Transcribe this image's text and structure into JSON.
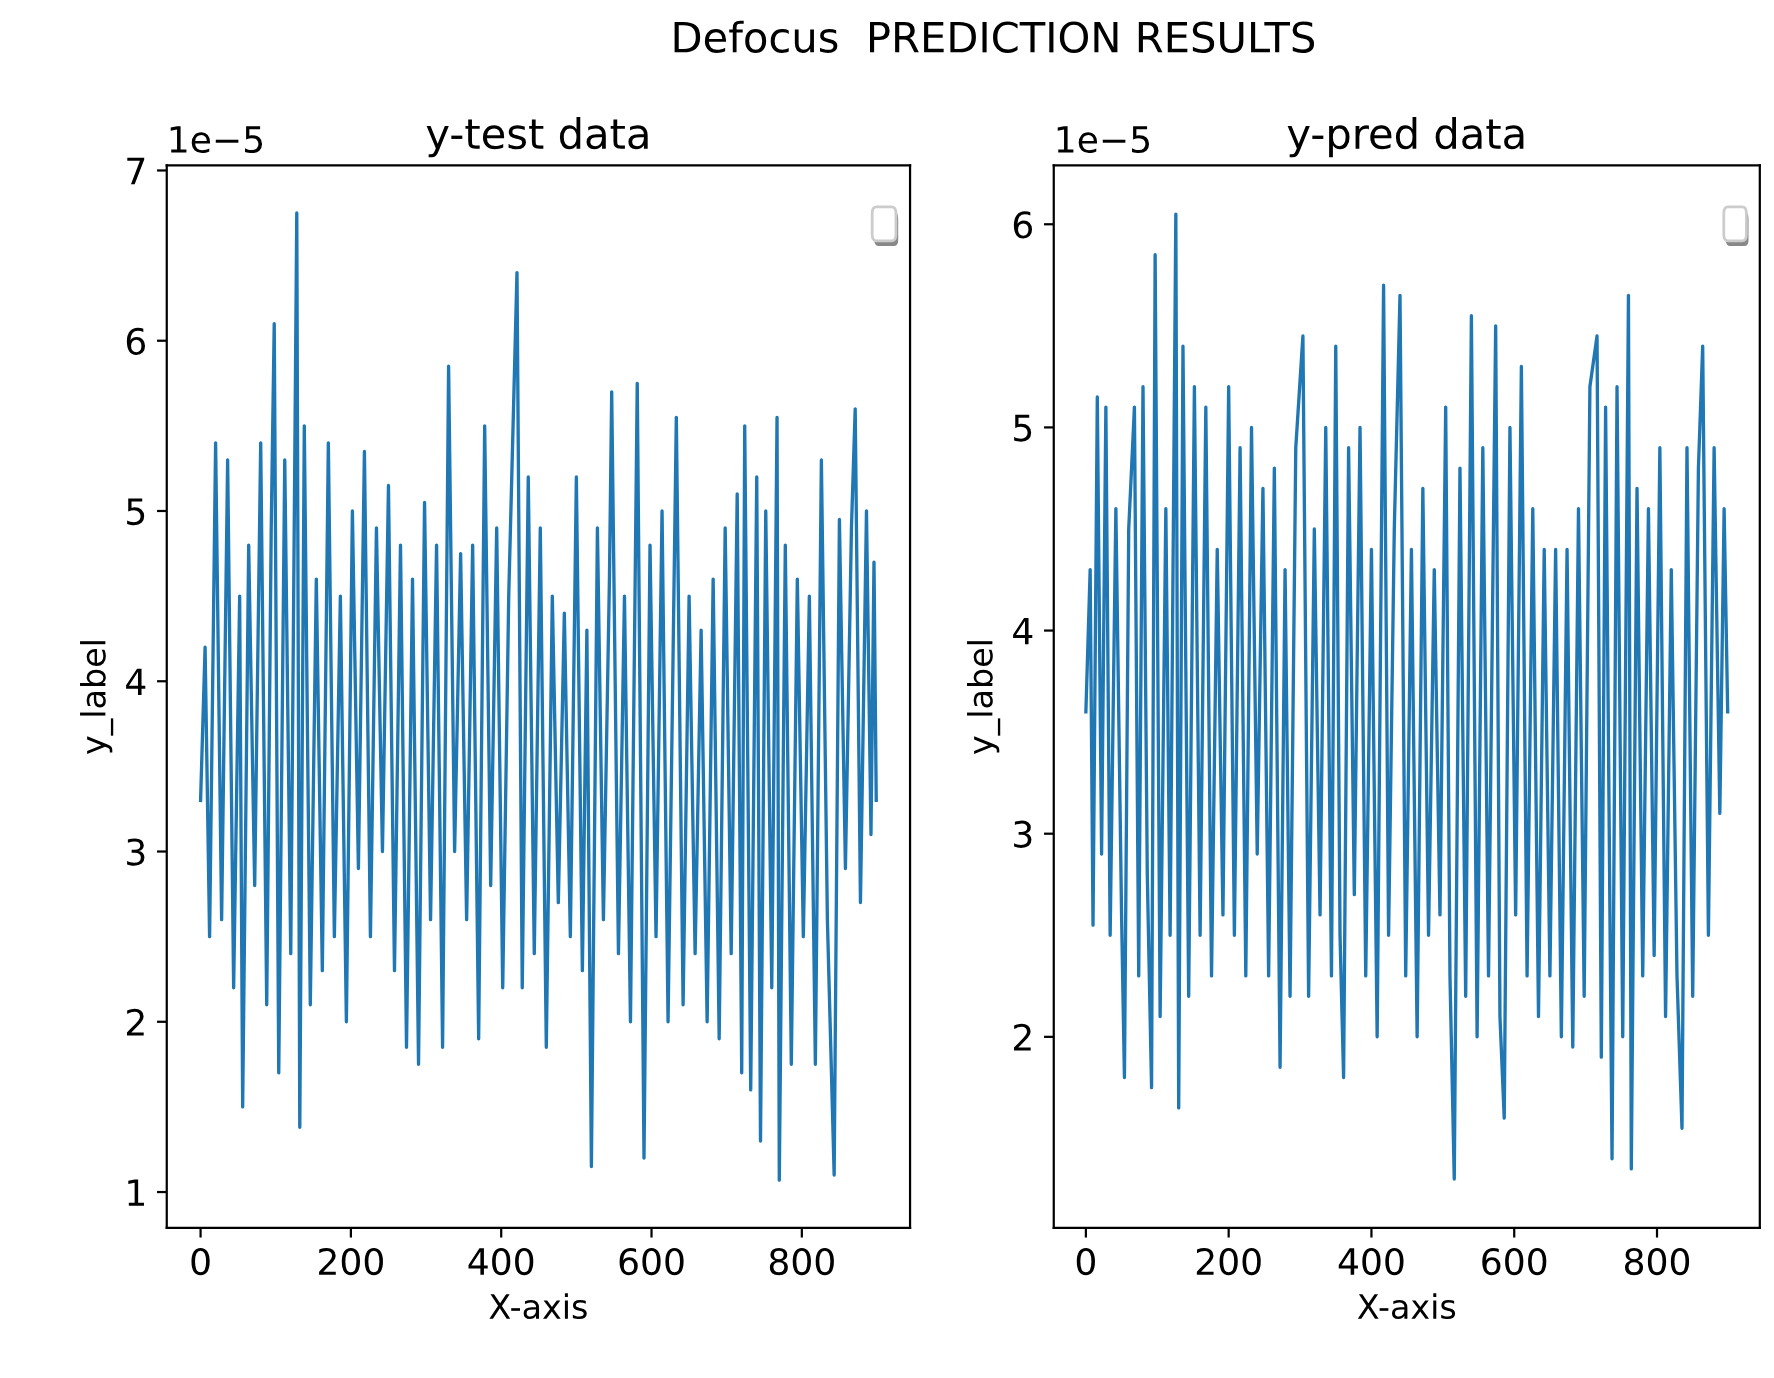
{
  "chart_data": [
    {
      "type": "line",
      "title": "y-test data",
      "xlabel": "X-axis",
      "ylabel": "y_label",
      "annotations": [
        "Defocus  PREDICTION RESULTS",
        "1e−5"
      ],
      "xlim": [
        -45,
        944
      ],
      "xticks": [
        0,
        200,
        400,
        600,
        800
      ],
      "ylim": [
        0.79,
        7.03
      ],
      "yticks": [
        1,
        2,
        3,
        4,
        5,
        6,
        7
      ],
      "series": [
        {
          "color": "#1f77b4",
          "x": [
            0,
            6,
            12,
            20,
            28,
            36,
            44,
            52,
            56,
            64,
            72,
            80,
            88,
            94,
            98,
            104,
            112,
            120,
            128,
            132,
            138,
            146,
            154,
            162,
            170,
            178,
            186,
            194,
            202,
            210,
            218,
            226,
            234,
            242,
            250,
            258,
            266,
            274,
            282,
            290,
            298,
            306,
            314,
            322,
            330,
            338,
            346,
            354,
            362,
            370,
            378,
            386,
            394,
            402,
            410,
            421,
            428,
            436,
            444,
            452,
            460,
            468,
            476,
            484,
            492,
            500,
            508,
            514,
            520,
            528,
            536,
            544,
            547,
            556,
            564,
            572,
            581,
            590,
            598,
            606,
            614,
            622,
            633,
            642,
            650,
            658,
            666,
            674,
            682,
            690,
            698,
            706,
            714,
            720,
            724,
            732,
            740,
            745,
            752,
            760,
            767,
            770,
            778,
            786,
            794,
            802,
            810,
            818,
            826,
            834,
            843,
            850,
            858,
            866,
            871,
            878,
            886,
            892,
            896,
            899
          ],
          "values": [
            3.3,
            4.2,
            2.5,
            5.4,
            2.6,
            5.3,
            2.2,
            4.5,
            1.5,
            4.8,
            2.8,
            5.4,
            2.1,
            4.9,
            6.1,
            1.7,
            5.3,
            2.4,
            6.75,
            1.38,
            5.5,
            2.1,
            4.6,
            2.3,
            5.4,
            2.5,
            4.5,
            2.0,
            5.0,
            2.9,
            5.35,
            2.5,
            4.9,
            3.0,
            5.15,
            2.3,
            4.8,
            1.85,
            4.6,
            1.75,
            5.05,
            2.6,
            4.8,
            1.85,
            5.85,
            3.0,
            4.75,
            2.6,
            4.8,
            1.9,
            5.5,
            2.8,
            4.9,
            2.2,
            4.5,
            6.4,
            2.2,
            5.2,
            2.4,
            4.9,
            1.85,
            4.5,
            2.7,
            4.4,
            2.5,
            5.2,
            2.3,
            4.3,
            1.15,
            4.9,
            2.6,
            4.6,
            5.7,
            2.4,
            4.5,
            2.0,
            5.75,
            1.2,
            4.8,
            2.5,
            5.0,
            2.0,
            5.55,
            2.1,
            4.5,
            2.4,
            4.3,
            2.0,
            4.6,
            1.9,
            4.9,
            2.4,
            5.1,
            1.7,
            5.5,
            1.6,
            5.2,
            1.3,
            5.0,
            2.2,
            5.55,
            1.07,
            4.8,
            1.75,
            4.6,
            2.5,
            4.5,
            1.75,
            5.3,
            2.6,
            1.1,
            4.95,
            2.9,
            4.9,
            5.6,
            2.7,
            5.0,
            3.1,
            4.7,
            3.3
          ]
        }
      ]
    },
    {
      "type": "line",
      "title": "y-pred data",
      "xlabel": "X-axis",
      "ylabel": "y_label",
      "annotations": [
        "1e−5"
      ],
      "xlim": [
        -45,
        944
      ],
      "xticks": [
        0,
        200,
        400,
        600,
        800
      ],
      "ylim": [
        1.06,
        6.29
      ],
      "yticks": [
        2,
        3,
        4,
        5,
        6
      ],
      "series": [
        {
          "color": "#1f77b4",
          "x": [
            0,
            6,
            10,
            16,
            22,
            28,
            34,
            42,
            50,
            54,
            60,
            68,
            74,
            80,
            86,
            92,
            97,
            104,
            112,
            118,
            126,
            130,
            136,
            144,
            152,
            160,
            168,
            176,
            184,
            192,
            200,
            208,
            216,
            224,
            232,
            240,
            248,
            256,
            264,
            272,
            279,
            286,
            294,
            304,
            312,
            320,
            328,
            336,
            344,
            350,
            356,
            361,
            368,
            376,
            384,
            392,
            400,
            408,
            417,
            424,
            432,
            440,
            448,
            456,
            464,
            472,
            480,
            488,
            496,
            504,
            510,
            516,
            524,
            532,
            540,
            548,
            556,
            564,
            574,
            580,
            586,
            594,
            602,
            610,
            618,
            626,
            634,
            642,
            650,
            658,
            666,
            674,
            682,
            690,
            698,
            706,
            716,
            722,
            728,
            737,
            744,
            752,
            760,
            764,
            772,
            780,
            788,
            796,
            804,
            812,
            820,
            828,
            835,
            842,
            850,
            858,
            864,
            872,
            880,
            888,
            894,
            899
          ],
          "values": [
            3.6,
            4.3,
            2.55,
            5.15,
            2.9,
            5.1,
            2.5,
            4.6,
            2.6,
            1.8,
            4.5,
            5.1,
            2.3,
            5.2,
            2.8,
            1.75,
            5.85,
            2.1,
            4.6,
            2.5,
            6.05,
            1.65,
            5.4,
            2.2,
            5.2,
            2.5,
            5.1,
            2.3,
            4.4,
            2.6,
            5.2,
            2.5,
            4.9,
            2.3,
            5.0,
            2.9,
            4.7,
            2.3,
            4.8,
            1.85,
            4.3,
            2.2,
            4.9,
            5.45,
            2.2,
            4.5,
            2.6,
            5.0,
            2.3,
            5.4,
            2.5,
            1.8,
            4.9,
            2.7,
            5.0,
            2.3,
            4.4,
            2.0,
            5.7,
            2.5,
            4.5,
            5.65,
            2.3,
            4.4,
            2.0,
            4.7,
            2.5,
            4.3,
            2.6,
            5.1,
            2.3,
            1.3,
            4.8,
            2.2,
            5.55,
            2.0,
            4.9,
            2.3,
            5.5,
            2.1,
            1.6,
            5.0,
            2.6,
            5.3,
            2.3,
            4.6,
            2.1,
            4.4,
            2.3,
            4.4,
            2.0,
            4.4,
            1.95,
            4.6,
            2.2,
            5.2,
            5.45,
            1.9,
            5.1,
            1.4,
            5.2,
            2.0,
            5.65,
            1.35,
            4.7,
            2.3,
            4.6,
            2.4,
            4.9,
            2.1,
            4.3,
            2.3,
            1.55,
            4.9,
            2.2,
            4.8,
            5.4,
            2.5,
            4.9,
            3.1,
            4.6,
            3.6
          ]
        }
      ]
    }
  ]
}
